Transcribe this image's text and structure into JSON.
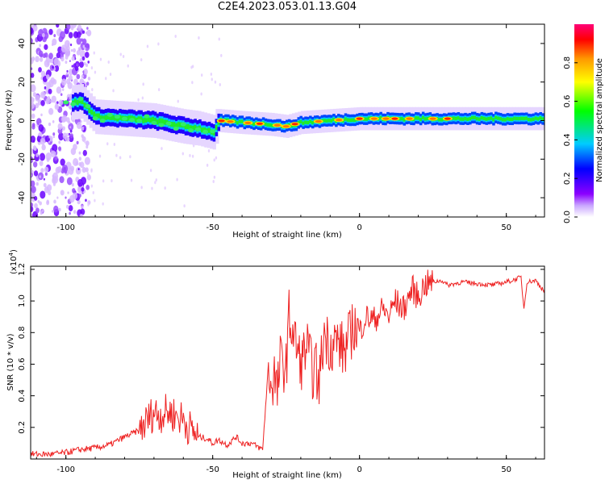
{
  "title": "C2E4.2023.053.01.13.G04",
  "colors": {
    "snr_line": "#ee2222",
    "colorbar_stops": [
      "#ffffff",
      "#8b00ff",
      "#0000ff",
      "#00d5ff",
      "#00ff00",
      "#ffff00",
      "#ff9900",
      "#ff0000",
      "#ff0066"
    ]
  },
  "chart_data": [
    {
      "type": "heatmap",
      "title": "C2E4.2023.053.01.13.G04",
      "xlabel": "Height of straight line (km)",
      "ylabel": "Frequency (Hz)",
      "xlim": [
        -112,
        63
      ],
      "ylim": [
        -50,
        50
      ],
      "xticks": [
        -100,
        -50,
        0,
        50
      ],
      "yticks": [
        -40,
        -20,
        0,
        20,
        40
      ],
      "xtick_labels": [
        "-100",
        "-50",
        "0",
        "50"
      ],
      "ytick_labels": [
        "-40",
        "-20",
        "0",
        "20",
        "40"
      ],
      "ridge": {
        "x": [
          -110,
          -100,
          -95,
          -90,
          -80,
          -70,
          -60,
          -55,
          -50,
          -48,
          -40,
          -30,
          -25,
          -20,
          -10,
          0,
          10,
          20,
          30,
          40,
          50,
          63
        ],
        "y": [
          8,
          9,
          10,
          2,
          1,
          0,
          -3,
          -4,
          -6,
          0,
          -1,
          -2,
          -3,
          -1,
          0,
          1,
          1,
          1,
          1,
          1,
          1,
          1
        ]
      },
      "colorbar": {
        "label": "Normalized spectral amplitude",
        "range": [
          0,
          1
        ],
        "ticks": [
          0.0,
          0.2,
          0.4,
          0.6,
          0.8
        ],
        "tick_labels": [
          "0.0",
          "0.2",
          "0.4",
          "0.6",
          "0.8"
        ]
      },
      "grid": false
    },
    {
      "type": "line",
      "xlabel": "Height of straight line (km)",
      "ylabel": "SNR (10 * v/v)",
      "scale_label_base": "(x10",
      "scale_label_exp": "4",
      "scale_label_close": ")",
      "xlim": [
        -112,
        63
      ],
      "ylim": [
        0,
        1.22
      ],
      "xticks": [
        -100,
        -50,
        0,
        50
      ],
      "yticks": [
        0.2,
        0.4,
        0.6,
        0.8,
        1.0,
        1.2
      ],
      "xtick_labels": [
        "-100",
        "-50",
        "0",
        "50"
      ],
      "ytick_labels": [
        "0.2",
        "0.4",
        "0.6",
        "0.8",
        "1.0",
        "1.2"
      ],
      "series": [
        {
          "x": [
            -112,
            -105,
            -100,
            -95,
            -90,
            -85,
            -80,
            -75,
            -72,
            -70,
            -68,
            -65,
            -62,
            -60,
            -58,
            -55,
            -52,
            -50,
            -48,
            -45,
            -42,
            -40,
            -37,
            -35,
            -33,
            -31,
            -30,
            -29,
            -28,
            -27,
            -25,
            -24,
            -22,
            -20,
            -18,
            -16,
            -15,
            -14,
            -12,
            -10,
            -8,
            -5,
            -2,
            0,
            2,
            5,
            8,
            10,
            12,
            15,
            18,
            20,
            22,
            25,
            28,
            30,
            35,
            40,
            45,
            50,
            52,
            55,
            56,
            57,
            60,
            63
          ],
          "y": [
            0.03,
            0.03,
            0.04,
            0.06,
            0.07,
            0.09,
            0.14,
            0.18,
            0.25,
            0.3,
            0.28,
            0.3,
            0.27,
            0.25,
            0.2,
            0.14,
            0.13,
            0.1,
            0.12,
            0.09,
            0.14,
            0.1,
            0.1,
            0.08,
            0.06,
            0.6,
            0.45,
            0.55,
            0.4,
            0.62,
            0.58,
            0.9,
            0.75,
            0.6,
            0.72,
            0.55,
            0.6,
            0.45,
            0.8,
            0.72,
            0.75,
            0.68,
            0.85,
            0.8,
            0.9,
            0.88,
            0.95,
            0.9,
            1.0,
            0.95,
            1.08,
            1.02,
            1.1,
            1.12,
            1.13,
            1.1,
            1.12,
            1.11,
            1.1,
            1.12,
            1.13,
            1.15,
            0.95,
            1.12,
            1.13,
            1.06
          ]
        }
      ],
      "grid": false
    }
  ]
}
